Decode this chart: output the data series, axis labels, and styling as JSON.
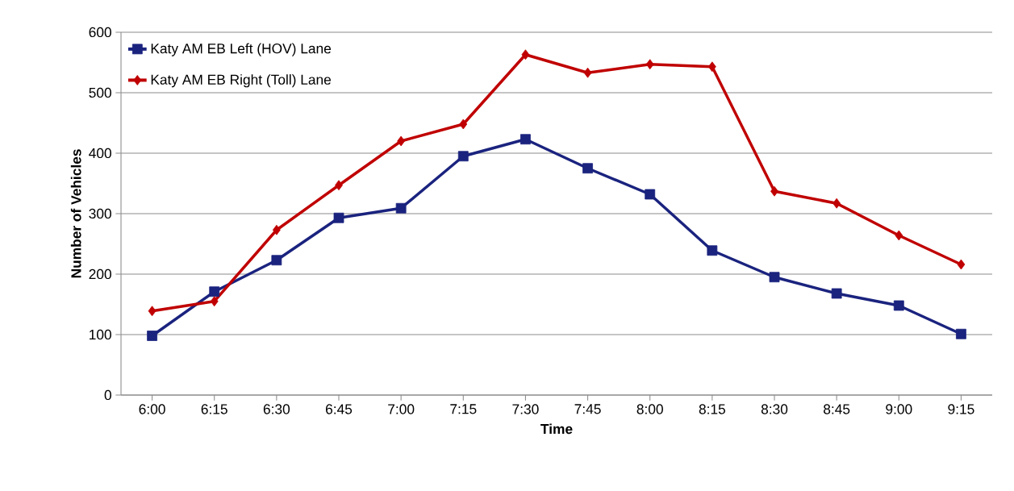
{
  "chart_data": {
    "type": "line",
    "xlabel": "Time",
    "ylabel": "Number of Vehicles",
    "categories": [
      "6:00",
      "6:15",
      "6:30",
      "6:45",
      "7:00",
      "7:15",
      "7:30",
      "7:45",
      "8:00",
      "8:15",
      "8:30",
      "8:45",
      "9:00",
      "9:15"
    ],
    "series": [
      {
        "name": "Katy AM EB Left (HOV) Lane",
        "color": "#1a237e",
        "marker": "square",
        "values": [
          98,
          171,
          223,
          293,
          309,
          395,
          423,
          375,
          332,
          239,
          195,
          168,
          148,
          101
        ]
      },
      {
        "name": "Katy AM EB Right (Toll) Lane",
        "color": "#c00000",
        "marker": "diamond",
        "values": [
          139,
          155,
          273,
          347,
          420,
          448,
          563,
          533,
          547,
          543,
          337,
          317,
          264,
          216
        ]
      }
    ],
    "ylim": [
      0,
      600
    ],
    "yticks": [
      0,
      100,
      200,
      300,
      400,
      500,
      600
    ],
    "grid": "y",
    "legend": "top left",
    "line_style": "solid"
  }
}
